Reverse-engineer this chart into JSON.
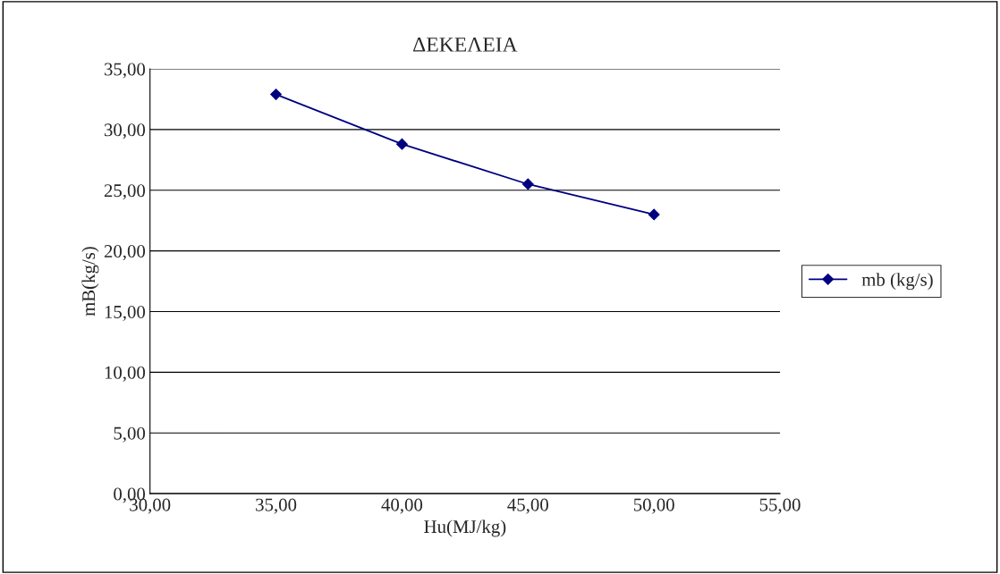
{
  "chart_data": {
    "type": "line",
    "title": "ΔΕΚΕΛΕΙΑ",
    "xlabel": "Hu(MJ/kg)",
    "ylabel": "mB(kg/s)",
    "x": [
      35,
      40,
      45,
      50
    ],
    "series": [
      {
        "name": "mb (kg/s)",
        "color": "#000080",
        "values": [
          32.9,
          28.8,
          25.5,
          23.0
        ]
      }
    ],
    "xlim": [
      30,
      55
    ],
    "ylim": [
      0,
      35
    ],
    "xticks": [
      {
        "value": 30,
        "label": "30,00"
      },
      {
        "value": 35,
        "label": "35,00"
      },
      {
        "value": 40,
        "label": "40,00"
      },
      {
        "value": 45,
        "label": "45,00"
      },
      {
        "value": 50,
        "label": "50,00"
      },
      {
        "value": 55,
        "label": "55,00"
      }
    ],
    "yticks": [
      {
        "value": 0,
        "label": "0,00"
      },
      {
        "value": 5,
        "label": "5,00"
      },
      {
        "value": 10,
        "label": "10,00"
      },
      {
        "value": 15,
        "label": "15,00"
      },
      {
        "value": 20,
        "label": "20,00"
      },
      {
        "value": 25,
        "label": "25,00"
      },
      {
        "value": 30,
        "label": "30,00"
      },
      {
        "value": 35,
        "label": "35,00"
      }
    ],
    "grid": "y",
    "legend": "right",
    "marker": "diamond",
    "line_style": "solid"
  }
}
